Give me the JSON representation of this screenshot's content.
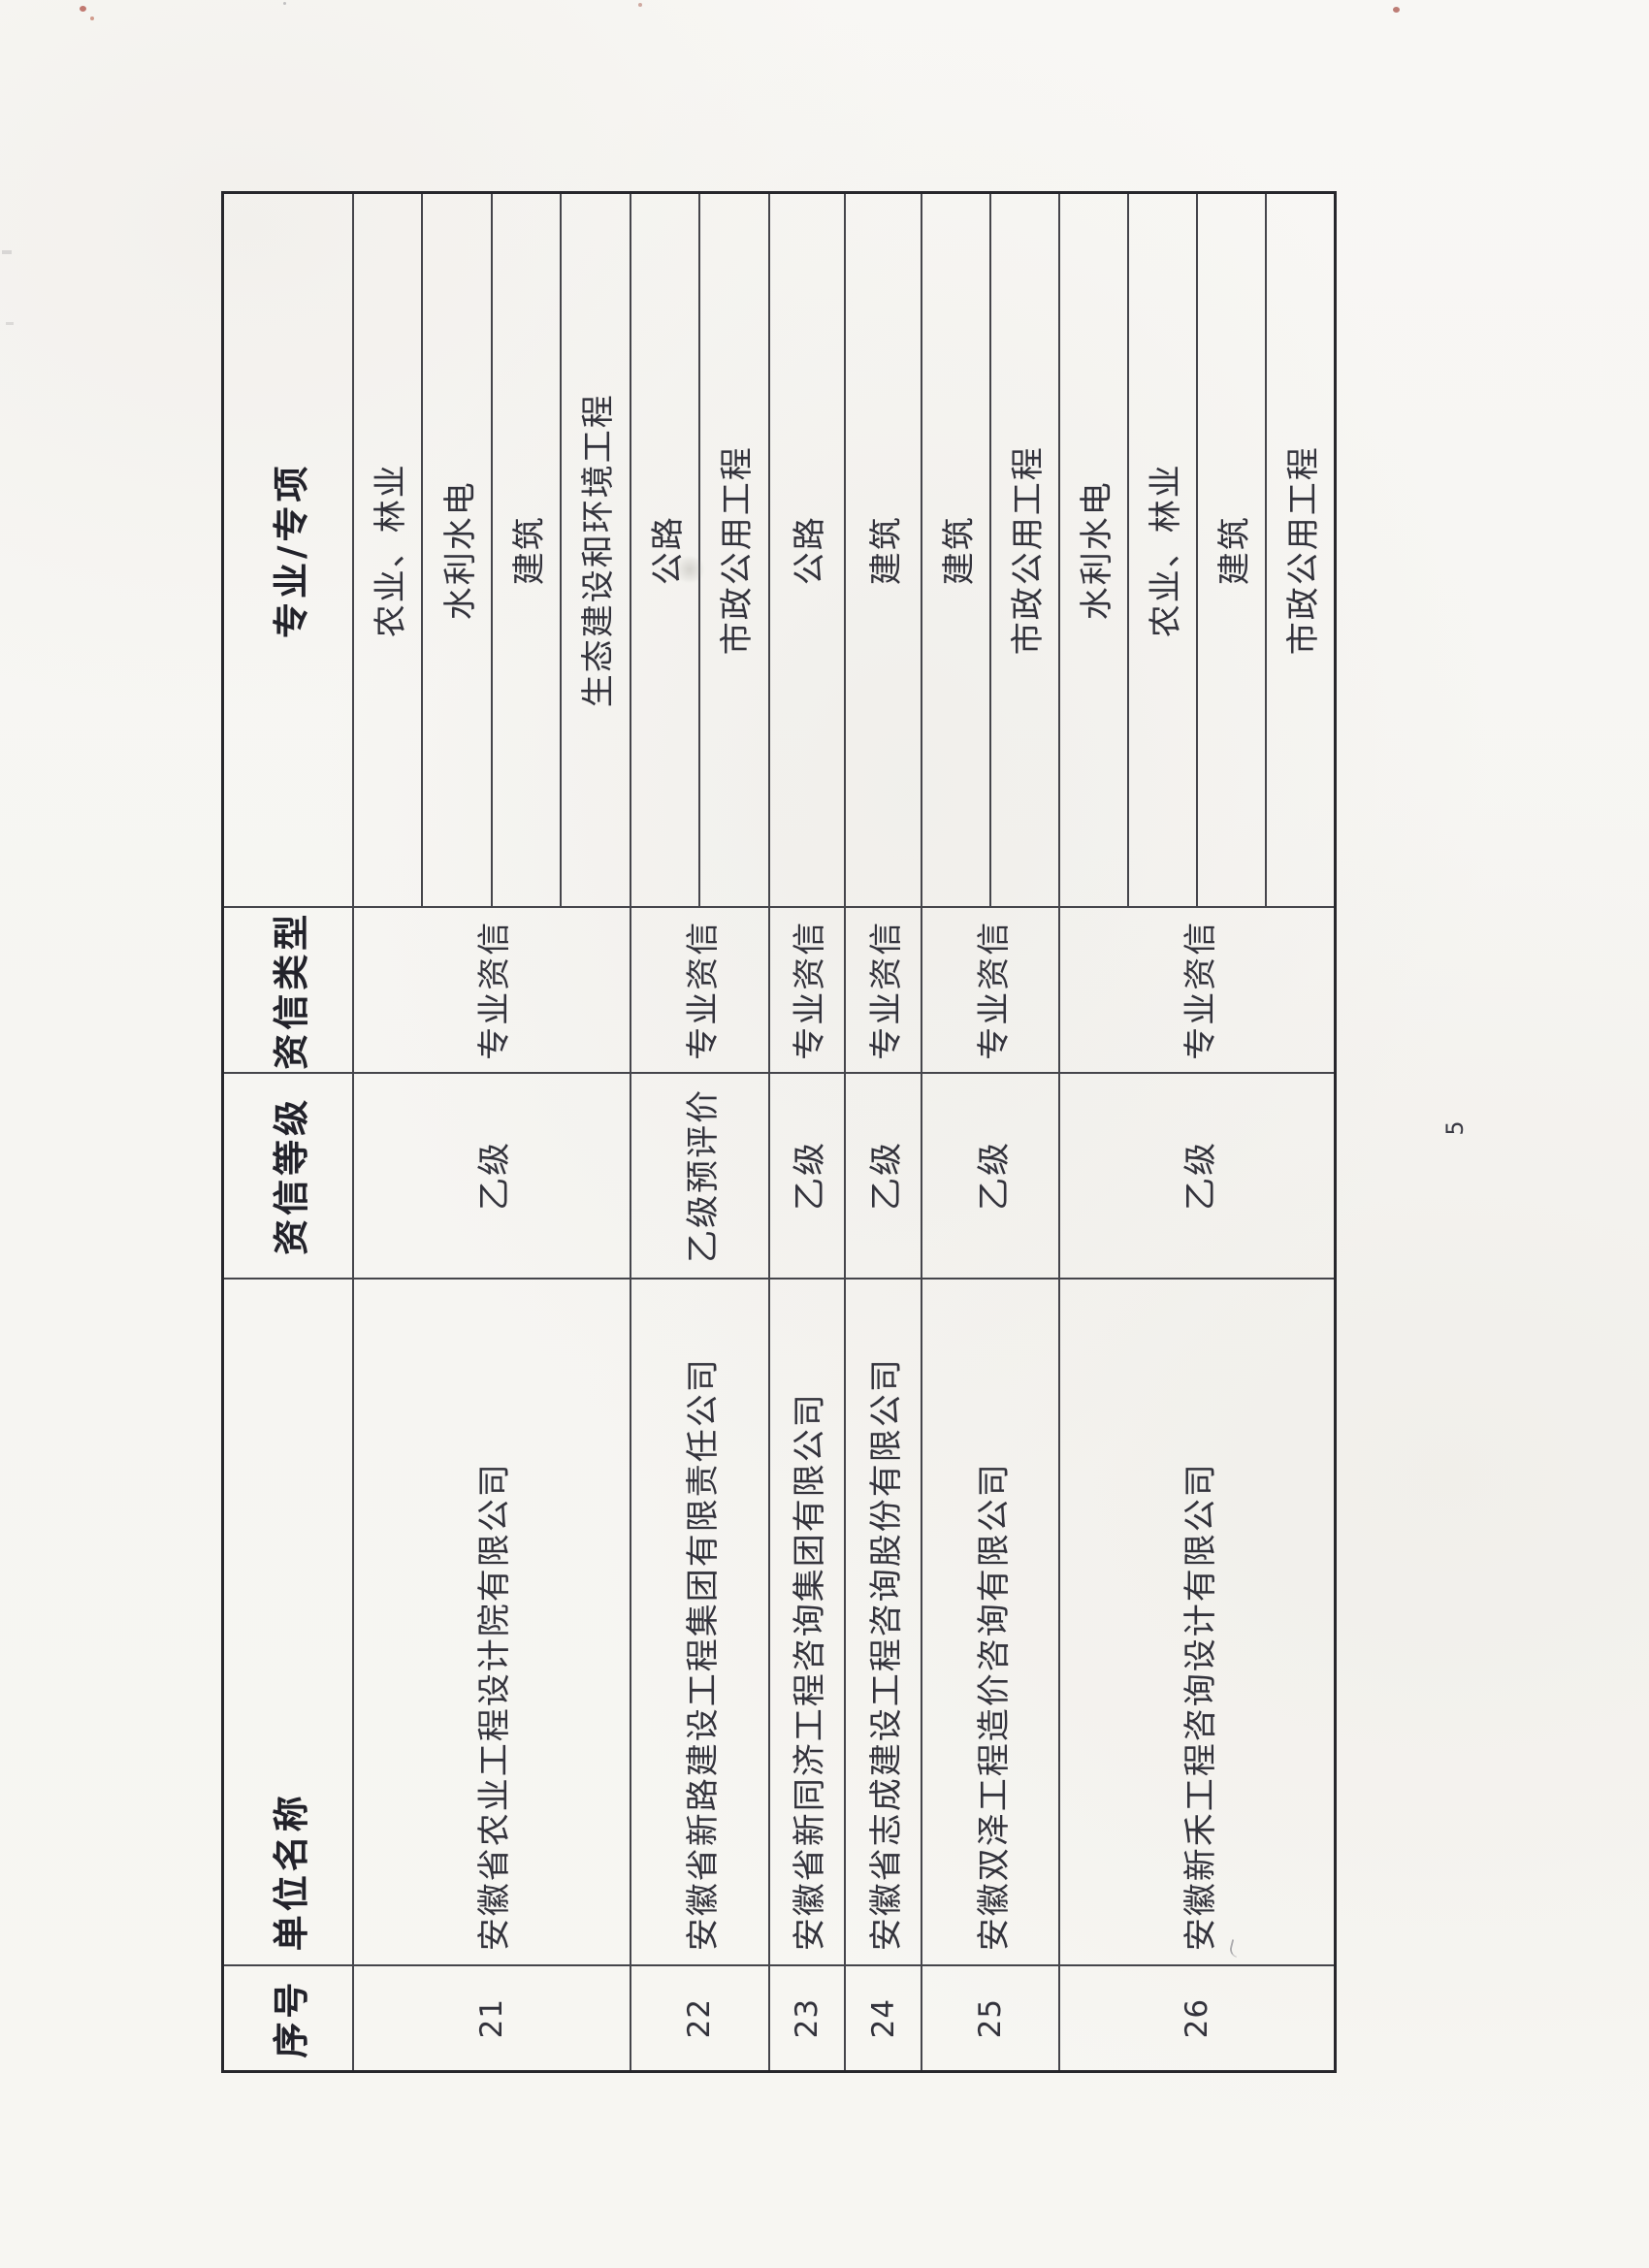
{
  "page": {
    "number": "5"
  },
  "colors": {
    "paper": "#f7f6f3",
    "ink": "#33333c",
    "header_ink": "#22222a",
    "grid_line": "#45454b",
    "outer_border": "#27272c"
  },
  "table": {
    "headers": {
      "seq": "序号",
      "name": "单位名称",
      "grade": "资信等级",
      "type": "资信类型",
      "specialty": "专业/专项"
    },
    "rows": [
      {
        "seq": "21",
        "name": "安徽省农业工程设计院有限公司",
        "grade": "乙级",
        "type": "专业资信",
        "specialties": [
          "农业、林业",
          "水利水电",
          "建筑",
          "生态建设和环境工程"
        ]
      },
      {
        "seq": "22",
        "name": "安徽省新路建设工程集团有限责任公司",
        "grade": "乙级预评价",
        "type": "专业资信",
        "specialties": [
          "公路",
          "市政公用工程"
        ]
      },
      {
        "seq": "23",
        "name": "安徽省新同济工程咨询集团有限公司",
        "grade": "乙级",
        "type": "专业资信",
        "specialties": [
          "公路"
        ]
      },
      {
        "seq": "24",
        "name": "安徽省志成建设工程咨询股份有限公司",
        "grade": "乙级",
        "type": "专业资信",
        "specialties": [
          "建筑"
        ]
      },
      {
        "seq": "25",
        "name": "安徽双泽工程造价咨询有限公司",
        "grade": "乙级",
        "type": "专业资信",
        "specialties": [
          "建筑",
          "市政公用工程"
        ]
      },
      {
        "seq": "26",
        "name": "安徽新禾工程咨询设计有限公司",
        "grade": "乙级",
        "type": "专业资信",
        "specialties": [
          "水利水电",
          "农业、林业",
          "建筑",
          "市政公用工程"
        ]
      }
    ]
  }
}
